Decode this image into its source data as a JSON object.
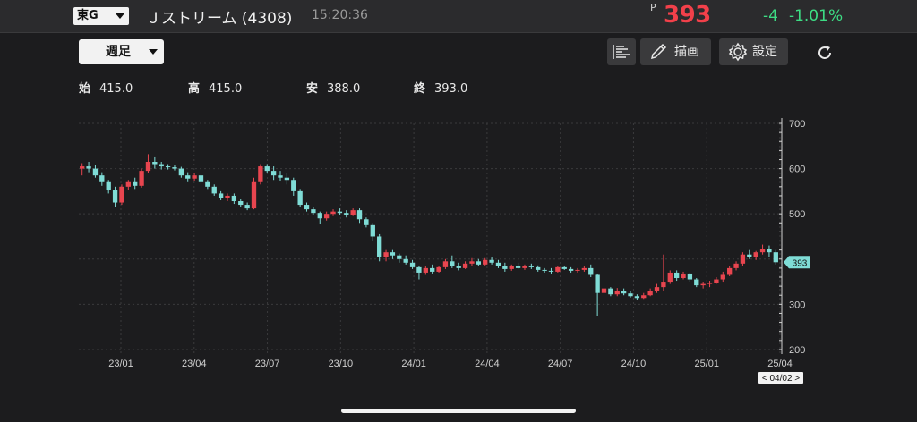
{
  "header": {
    "market": "東G",
    "stock_name": "Ｊストリーム (4308)",
    "time": "15:20:36",
    "price_flag": "P",
    "price": "393",
    "change": "-4",
    "change_pct": "-1.01%"
  },
  "toolbar": {
    "period": "週足",
    "draw_label": "描画",
    "settings_label": "設定"
  },
  "ohlc": {
    "open_label": "始",
    "open": "415.0",
    "high_label": "高",
    "high": "415.0",
    "low_label": "安",
    "low": "388.0",
    "close_label": "終",
    "close": "393.0"
  },
  "colors": {
    "up": "#e8454f",
    "down": "#7fdcd6",
    "price_up": "#f2404a",
    "change": "#3ddc84"
  },
  "chart_data": {
    "type": "candlestick",
    "x_ticks": [
      "23/01",
      "23/04",
      "23/07",
      "23/10",
      "24/01",
      "24/04",
      "24/07",
      "24/10",
      "25/01",
      "25/04"
    ],
    "y_ticks": [
      200,
      300,
      400,
      500,
      600,
      700
    ],
    "ylim": [
      190,
      700
    ],
    "current_price_label": "393",
    "cursor_date": "< 04/02 >",
    "grid": true,
    "candles": [
      [
        600,
        612,
        585,
        605
      ],
      [
        605,
        615,
        592,
        600
      ],
      [
        600,
        608,
        580,
        585
      ],
      [
        585,
        592,
        562,
        570
      ],
      [
        570,
        575,
        545,
        552
      ],
      [
        552,
        560,
        515,
        525
      ],
      [
        525,
        565,
        520,
        560
      ],
      [
        560,
        575,
        552,
        570
      ],
      [
        570,
        580,
        555,
        562
      ],
      [
        562,
        600,
        558,
        595
      ],
      [
        595,
        632,
        590,
        615
      ],
      [
        615,
        625,
        600,
        610
      ],
      [
        610,
        615,
        598,
        605
      ],
      [
        605,
        610,
        598,
        603
      ],
      [
        603,
        607,
        596,
        600
      ],
      [
        600,
        604,
        580,
        585
      ],
      [
        585,
        592,
        570,
        578
      ],
      [
        578,
        590,
        572,
        585
      ],
      [
        585,
        588,
        565,
        570
      ],
      [
        570,
        575,
        555,
        560
      ],
      [
        560,
        565,
        540,
        545
      ],
      [
        545,
        550,
        530,
        535
      ],
      [
        535,
        545,
        528,
        540
      ],
      [
        540,
        545,
        522,
        528
      ],
      [
        528,
        532,
        515,
        520
      ],
      [
        520,
        525,
        508,
        512
      ],
      [
        512,
        580,
        510,
        570
      ],
      [
        570,
        610,
        565,
        605
      ],
      [
        605,
        610,
        590,
        595
      ],
      [
        595,
        605,
        575,
        585
      ],
      [
        585,
        595,
        572,
        580
      ],
      [
        580,
        590,
        565,
        575
      ],
      [
        575,
        580,
        540,
        550
      ],
      [
        550,
        555,
        515,
        520
      ],
      [
        520,
        525,
        505,
        510
      ],
      [
        510,
        515,
        498,
        502
      ],
      [
        502,
        505,
        478,
        490
      ],
      [
        490,
        505,
        485,
        500
      ],
      [
        500,
        510,
        495,
        505
      ],
      [
        505,
        512,
        498,
        502
      ],
      [
        502,
        508,
        492,
        498
      ],
      [
        498,
        512,
        495,
        508
      ],
      [
        508,
        512,
        480,
        488
      ],
      [
        488,
        492,
        470,
        475
      ],
      [
        475,
        480,
        440,
        450
      ],
      [
        450,
        455,
        395,
        405
      ],
      [
        405,
        420,
        395,
        415
      ],
      [
        415,
        420,
        400,
        408
      ],
      [
        408,
        412,
        392,
        400
      ],
      [
        400,
        408,
        388,
        392
      ],
      [
        392,
        398,
        378,
        382
      ],
      [
        382,
        385,
        355,
        370
      ],
      [
        370,
        385,
        365,
        380
      ],
      [
        380,
        388,
        368,
        372
      ],
      [
        372,
        385,
        370,
        382
      ],
      [
        382,
        400,
        378,
        395
      ],
      [
        395,
        408,
        380,
        385
      ],
      [
        385,
        392,
        375,
        380
      ],
      [
        380,
        395,
        378,
        390
      ],
      [
        390,
        402,
        385,
        395
      ],
      [
        395,
        400,
        385,
        388
      ],
      [
        388,
        402,
        386,
        398
      ],
      [
        398,
        404,
        388,
        392
      ],
      [
        392,
        398,
        380,
        385
      ],
      [
        385,
        392,
        372,
        378
      ],
      [
        378,
        388,
        374,
        385
      ],
      [
        385,
        392,
        378,
        380
      ],
      [
        380,
        388,
        376,
        384
      ],
      [
        384,
        390,
        378,
        382
      ],
      [
        382,
        386,
        372,
        376
      ],
      [
        376,
        380,
        370,
        374
      ],
      [
        374,
        380,
        368,
        372
      ],
      [
        372,
        385,
        370,
        382
      ],
      [
        382,
        384,
        376,
        378
      ],
      [
        378,
        382,
        370,
        374
      ],
      [
        374,
        380,
        370,
        376
      ],
      [
        376,
        385,
        372,
        380
      ],
      [
        380,
        388,
        360,
        365
      ],
      [
        365,
        368,
        275,
        325
      ],
      [
        325,
        340,
        320,
        335
      ],
      [
        335,
        338,
        318,
        322
      ],
      [
        322,
        336,
        318,
        330
      ],
      [
        330,
        335,
        320,
        324
      ],
      [
        324,
        330,
        315,
        318
      ],
      [
        318,
        322,
        310,
        314
      ],
      [
        314,
        325,
        312,
        320
      ],
      [
        320,
        335,
        318,
        330
      ],
      [
        330,
        345,
        325,
        338
      ],
      [
        338,
        410,
        330,
        350
      ],
      [
        350,
        375,
        345,
        370
      ],
      [
        370,
        375,
        352,
        358
      ],
      [
        358,
        372,
        355,
        368
      ],
      [
        368,
        370,
        350,
        355
      ],
      [
        355,
        358,
        338,
        342
      ],
      [
        342,
        350,
        335,
        345
      ],
      [
        345,
        352,
        338,
        348
      ],
      [
        348,
        360,
        345,
        355
      ],
      [
        355,
        372,
        350,
        365
      ],
      [
        365,
        385,
        362,
        380
      ],
      [
        380,
        395,
        375,
        390
      ],
      [
        390,
        415,
        385,
        410
      ],
      [
        410,
        420,
        400,
        405
      ],
      [
        405,
        418,
        398,
        415
      ],
      [
        415,
        432,
        410,
        422
      ],
      [
        422,
        430,
        405,
        415
      ],
      [
        415,
        420,
        388,
        393
      ]
    ]
  }
}
